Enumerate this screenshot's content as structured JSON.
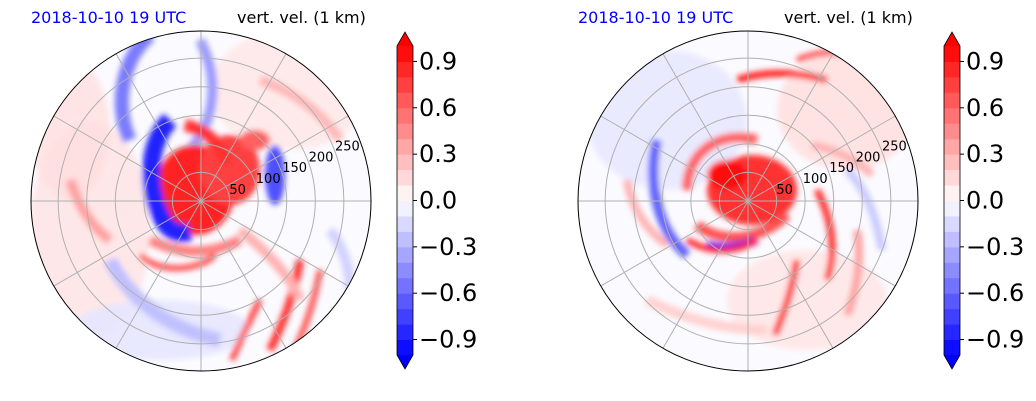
{
  "chart_data": [
    {
      "type": "heatmap",
      "projection": "polar",
      "title_left": "2018-10-10 19 UTC",
      "title_right": "vert. vel. (1 km)",
      "radial_ticks": [
        50,
        100,
        150,
        200,
        250
      ],
      "colorbar": {
        "ticks": [
          0.9,
          0.6,
          0.3,
          0.0,
          -0.3,
          -0.6,
          -0.9
        ],
        "tick_labels": [
          "0.9",
          "0.6",
          "0.3",
          "0.0",
          "−0.3",
          "−0.6",
          "−0.9"
        ],
        "vmin": -1.0,
        "vmax": 1.0,
        "extend": "both",
        "colors": {
          "low": "#0000ff",
          "mid": "#ffffff",
          "high": "#ff0000"
        }
      },
      "grid": true
    },
    {
      "type": "heatmap",
      "projection": "polar",
      "title_left": "2018-10-10 19 UTC",
      "title_right": "vert. vel. (1 km)",
      "radial_ticks": [
        50,
        100,
        150,
        200,
        250
      ],
      "colorbar": {
        "ticks": [
          0.9,
          0.6,
          0.3,
          0.0,
          -0.3,
          -0.6,
          -0.9
        ],
        "tick_labels": [
          "0.9",
          "0.6",
          "0.3",
          "0.0",
          "−0.3",
          "−0.6",
          "−0.9"
        ],
        "vmin": -1.0,
        "vmax": 1.0,
        "extend": "both",
        "colors": {
          "low": "#0000ff",
          "mid": "#ffffff",
          "high": "#ff0000"
        }
      },
      "grid": true
    }
  ],
  "title_color": "#0000ff"
}
